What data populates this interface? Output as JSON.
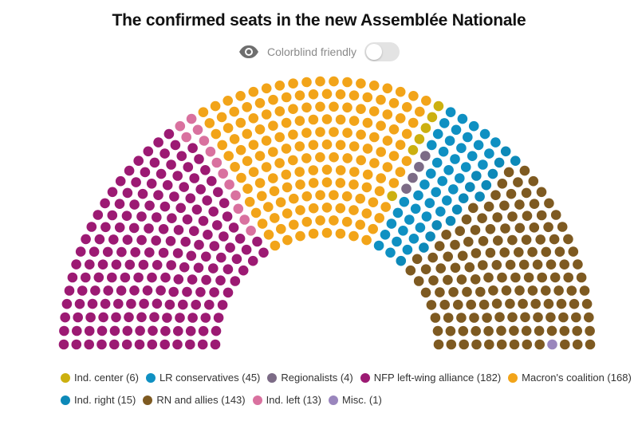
{
  "title": "The confirmed seats in the new Assemblée Nationale",
  "toggle": {
    "label": "Colorblind friendly",
    "icon": "eye-icon",
    "on": false
  },
  "chart_data": {
    "type": "hemicycle",
    "total_seats": 577,
    "parties": [
      {
        "key": "nfp",
        "seats": 182,
        "color": "#9c1a73",
        "legend": "NFP left-wing alliance (182)"
      },
      {
        "key": "indleft",
        "seats": 13,
        "color": "#d9719f",
        "legend": "Ind. left (13)"
      },
      {
        "key": "macron",
        "seats": 168,
        "color": "#f2a419",
        "legend": "Macron's coalition (168)"
      },
      {
        "key": "indcenter",
        "seats": 6,
        "color": "#ccb00f",
        "legend": "Ind. center (6)"
      },
      {
        "key": "regionalists",
        "seats": 4,
        "color": "#7c6b86",
        "legend": "Regionalists (4)"
      },
      {
        "key": "lr",
        "seats": 45,
        "color": "#0f90c2",
        "legend": "LR conservatives (45)"
      },
      {
        "key": "indright",
        "seats": 15,
        "color": "#0d89b8",
        "legend": "Ind. right (15)"
      },
      {
        "key": "rn",
        "seats": 143,
        "color": "#7e5a21",
        "legend": "RN and allies (143)"
      },
      {
        "key": "misc",
        "seats": 1,
        "color": "#9a86bd",
        "legend": "Misc. (1)"
      }
    ],
    "legend_rows": [
      [
        "indcenter",
        "lr",
        "regionalists",
        "nfp",
        "macron"
      ],
      [
        "indright",
        "rn",
        "indleft",
        "misc"
      ]
    ]
  }
}
